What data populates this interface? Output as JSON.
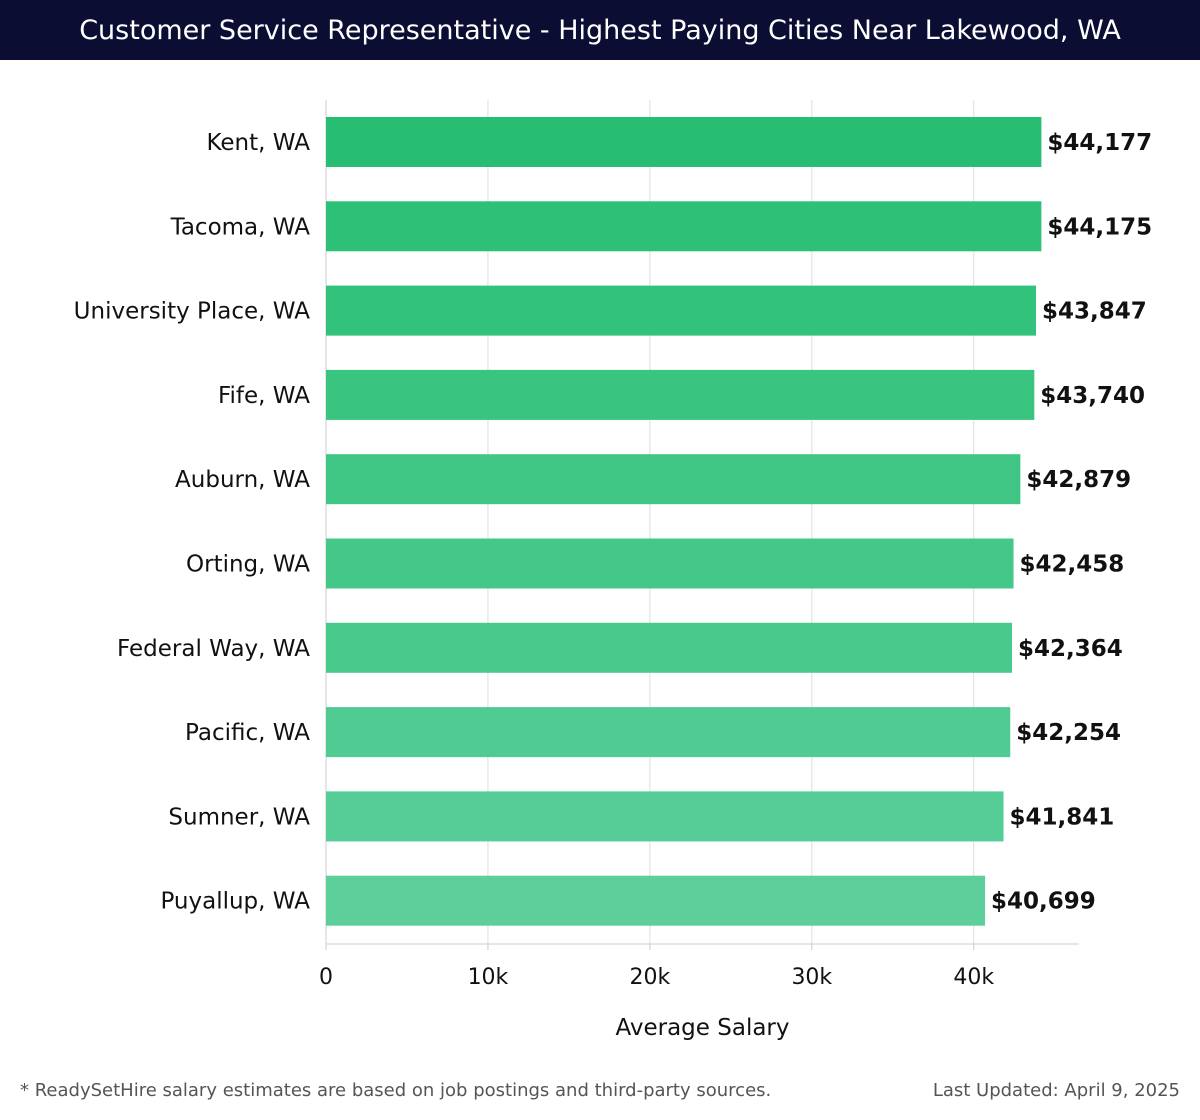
{
  "header": {
    "title": "Customer Service Representative - Highest Paying Cities Near Lakewood, WA"
  },
  "footer": {
    "note": "* ReadySetHire salary estimates are based on job postings and third-party sources.",
    "updated": "Last Updated: April 9, 2025"
  },
  "colors": {
    "header_bg": "#0b0d33",
    "bar_top": "#27be73",
    "bar_bottom": "#5ccf9a",
    "grid": "#dddddd",
    "text": "#111111"
  },
  "chart_data": {
    "type": "bar",
    "orientation": "horizontal",
    "categories": [
      "Kent, WA",
      "Tacoma, WA",
      "University Place, WA",
      "Fife, WA",
      "Auburn, WA",
      "Orting, WA",
      "Federal Way, WA",
      "Pacific, WA",
      "Sumner, WA",
      "Puyallup, WA"
    ],
    "values": [
      44177,
      44175,
      43847,
      43740,
      42879,
      42458,
      42364,
      42254,
      41841,
      40699
    ],
    "value_labels": [
      "$44,177",
      "$44,175",
      "$43,847",
      "$43,740",
      "$42,879",
      "$42,458",
      "$42,364",
      "$42,254",
      "$41,841",
      "$40,699"
    ],
    "xlabel": "Average Salary",
    "ylabel": "",
    "xlim": [
      0,
      46500
    ],
    "xticks": [
      0,
      10000,
      20000,
      30000,
      40000
    ],
    "xtick_labels": [
      "0",
      "10k",
      "20k",
      "30k",
      "40k"
    ],
    "grid": true
  }
}
